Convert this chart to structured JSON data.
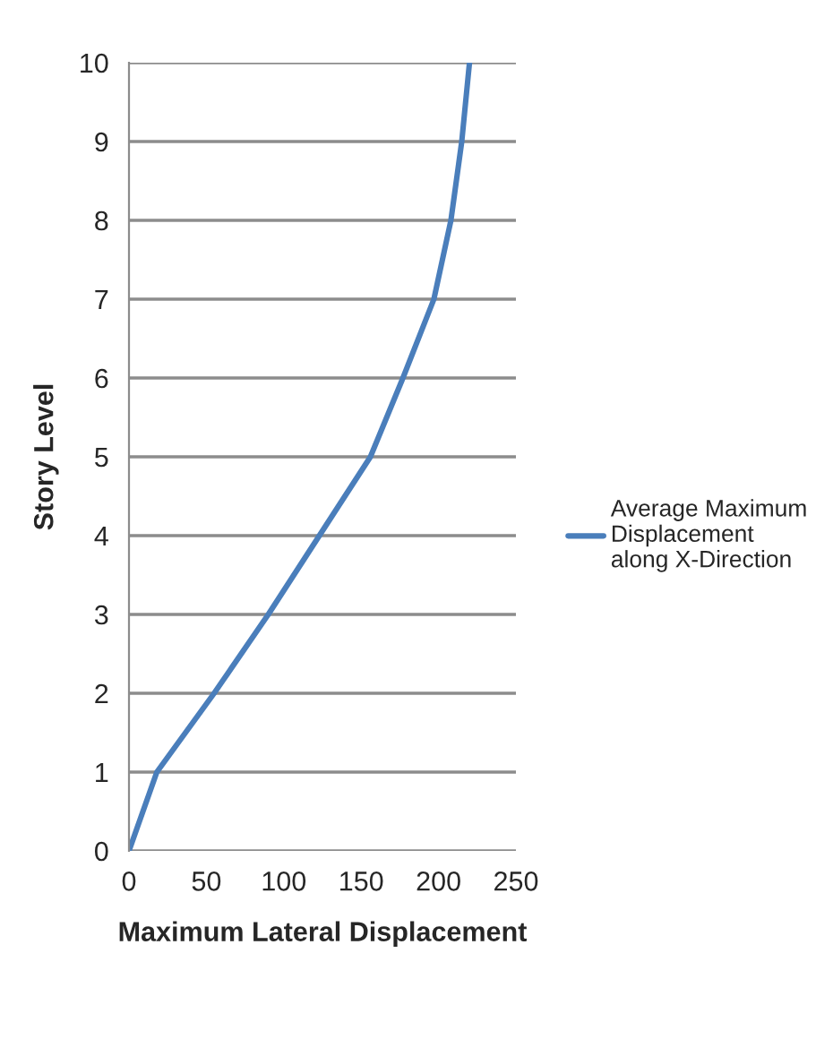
{
  "chart_data": {
    "type": "line",
    "xlabel": "Maximum Lateral Displacement",
    "ylabel": "Story Level",
    "series": [
      {
        "name": "Average Maximum Displacement along X-Direction",
        "color": "#4a7ebb",
        "x": [
          0,
          18,
          55,
          90,
          123,
          156,
          177,
          197,
          208,
          215,
          220
        ],
        "values": [
          0,
          1,
          2,
          3,
          4,
          5,
          6,
          7,
          8,
          9,
          10
        ]
      }
    ],
    "xlim": [
      0,
      250
    ],
    "xticks": [
      0,
      50,
      100,
      150,
      200,
      250
    ],
    "ylim": [
      0,
      10
    ],
    "yticks": [
      0,
      1,
      2,
      3,
      4,
      5,
      6,
      7,
      8,
      9,
      10
    ],
    "grid": "y",
    "legend": "right",
    "marker": "none",
    "line_style": "solid"
  }
}
